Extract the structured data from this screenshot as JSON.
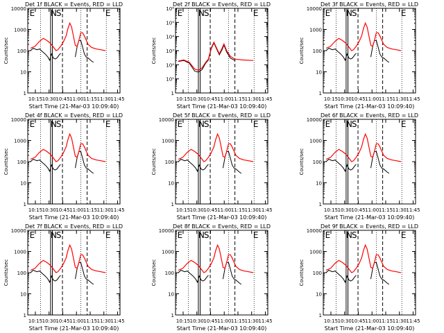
{
  "chart_data": {
    "type": "line",
    "layout": "3x3 grid of log-scale time-series panels",
    "shared": {
      "xlabel": "Start Time (21-Mar-03 10:09:40)",
      "ylabel": "Counts/sec",
      "x_ticks": [
        "10:15",
        "10:30",
        "10:45",
        "11:00",
        "11:15",
        "11:30",
        "11:45"
      ],
      "xlim_minutes": [
        -3,
        98
      ],
      "yscale": "log",
      "y_ticks": [
        "1",
        "10",
        "100",
        "1000",
        "10000"
      ],
      "y_ticks_panel2": [
        "1",
        "10¹",
        "10²",
        "10³",
        "10⁴",
        "10⁵",
        "10⁶"
      ],
      "series": [
        {
          "name": "Events",
          "color": "#000000"
        },
        {
          "name": "LLD",
          "color": "#ff0000"
        }
      ],
      "markers": [
        "E",
        "N",
        "S",
        "E"
      ],
      "solid_lines_min": [
        22,
        24
      ],
      "dashed_lines_min": [
        35,
        62
      ],
      "dotted_lines_min": [
        11,
        55,
        83
      ]
    },
    "panels": [
      {
        "title": "Det 1f BLACK = Events, RED = LLD",
        "ylim": [
          1,
          10000
        ]
      },
      {
        "title": "Det 2f BLACK = Events, RED = LLD",
        "ylim": [
          1,
          1000000
        ]
      },
      {
        "title": "Det 3f BLACK = Events, RED = LLD",
        "ylim": [
          1,
          10000
        ]
      },
      {
        "title": "Det 4f BLACK = Events, RED = LLD",
        "ylim": [
          1,
          10000
        ]
      },
      {
        "title": "Det 5f BLACK = Events, RED = LLD",
        "ylim": [
          1,
          10000
        ]
      },
      {
        "title": "Det 6f BLACK = Events, RED = LLD",
        "ylim": [
          1,
          10000
        ]
      },
      {
        "title": "Det 7f BLACK = Events, RED = LLD",
        "ylim": [
          1,
          10000
        ]
      },
      {
        "title": "Det 8f BLACK = Events, RED = LLD",
        "ylim": [
          1,
          10000
        ]
      },
      {
        "title": "Det 9f BLACK = Events, RED = LLD",
        "ylim": [
          1,
          10000
        ]
      }
    ],
    "curves": {
      "red_LLD": [
        [
          0,
          130
        ],
        [
          5,
          160
        ],
        [
          10,
          280
        ],
        [
          14,
          380
        ],
        [
          18,
          300
        ],
        [
          22,
          220
        ],
        [
          26,
          130
        ],
        [
          28,
          100
        ],
        [
          30,
          110
        ],
        [
          33,
          160
        ],
        [
          36,
          260
        ],
        [
          39,
          500
        ],
        [
          41,
          1100
        ],
        [
          43,
          2000
        ],
        [
          45,
          1300
        ],
        [
          47,
          500
        ],
        [
          49,
          180
        ],
        [
          51,
          160
        ],
        [
          53,
          300
        ],
        [
          55,
          700
        ],
        [
          57,
          700
        ],
        [
          59,
          500
        ],
        [
          63,
          200
        ],
        [
          67,
          140
        ],
        [
          72,
          120
        ],
        [
          77,
          110
        ],
        [
          82,
          100
        ]
      ],
      "black_events": [
        [
          0,
          100
        ],
        [
          3,
          130
        ],
        [
          7,
          110
        ],
        [
          10,
          120
        ],
        [
          13,
          90
        ],
        [
          16,
          70
        ],
        [
          19,
          50
        ],
        [
          21,
          35
        ],
        [
          23,
          70
        ],
        [
          25,
          45
        ],
        [
          27,
          40
        ],
        [
          29,
          45
        ],
        [
          31,
          60
        ],
        [
          33,
          75
        ],
        null,
        [
          49,
          50
        ],
        [
          51,
          150
        ],
        [
          53,
          300
        ],
        [
          55,
          300
        ],
        [
          57,
          150
        ],
        [
          59,
          70
        ],
        [
          61,
          50
        ],
        [
          63,
          45
        ],
        [
          65,
          38
        ],
        [
          67,
          32
        ],
        [
          69,
          28
        ]
      ],
      "red_LLD_det2": [
        [
          0,
          180
        ],
        [
          6,
          220
        ],
        [
          12,
          150
        ],
        [
          18,
          50
        ],
        [
          22,
          40
        ],
        [
          26,
          60
        ],
        [
          30,
          150
        ],
        [
          33,
          250
        ],
        [
          36,
          1500
        ],
        [
          39,
          4000
        ],
        [
          42,
          1500
        ],
        [
          45,
          600
        ],
        [
          48,
          1500
        ],
        [
          50,
          3000
        ],
        [
          53,
          1000
        ],
        [
          57,
          400
        ],
        [
          62,
          250
        ],
        [
          70,
          220
        ],
        [
          82,
          200
        ]
      ],
      "black_events_det2": [
        [
          0,
          170
        ],
        [
          6,
          200
        ],
        [
          12,
          130
        ],
        [
          18,
          35
        ],
        [
          22,
          30
        ],
        [
          26,
          45
        ],
        [
          30,
          130
        ],
        [
          33,
          220
        ],
        [
          36,
          1300
        ],
        [
          39,
          3500
        ],
        [
          42,
          1300
        ],
        [
          45,
          500
        ],
        [
          48,
          1200
        ],
        [
          50,
          2500
        ],
        [
          53,
          800
        ],
        [
          57,
          300
        ],
        [
          62,
          200
        ]
      ]
    }
  }
}
